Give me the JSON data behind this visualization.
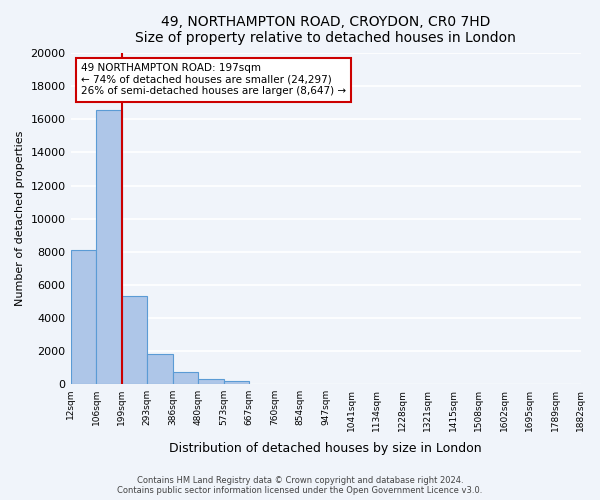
{
  "title": "49, NORTHAMPTON ROAD, CROYDON, CR0 7HD",
  "subtitle": "Size of property relative to detached houses in London",
  "xlabel": "Distribution of detached houses by size in London",
  "ylabel": "Number of detached properties",
  "bin_edges": [
    "12sqm",
    "106sqm",
    "199sqm",
    "293sqm",
    "386sqm",
    "480sqm",
    "573sqm",
    "667sqm",
    "760sqm",
    "854sqm",
    "947sqm",
    "1041sqm",
    "1134sqm",
    "1228sqm",
    "1321sqm",
    "1415sqm",
    "1508sqm",
    "1602sqm",
    "1695sqm",
    "1789sqm",
    "1882sqm"
  ],
  "bar_values": [
    8100,
    16600,
    5300,
    1800,
    700,
    300,
    150,
    0,
    0,
    0,
    0,
    0,
    0,
    0,
    0,
    0,
    0,
    0,
    0,
    0
  ],
  "bar_color": "#aec6e8",
  "bar_edge_color": "#5b9bd5",
  "property_line_color": "#cc0000",
  "ylim": [
    0,
    20000
  ],
  "yticks": [
    0,
    2000,
    4000,
    6000,
    8000,
    10000,
    12000,
    14000,
    16000,
    18000,
    20000
  ],
  "annotation_title": "49 NORTHAMPTON ROAD: 197sqm",
  "annotation_line1": "← 74% of detached houses are smaller (24,297)",
  "annotation_line2": "26% of semi-detached houses are larger (8,647) →",
  "annotation_box_color": "#ffffff",
  "annotation_box_edge_color": "#cc0000",
  "footer_line1": "Contains HM Land Registry data © Crown copyright and database right 2024.",
  "footer_line2": "Contains public sector information licensed under the Open Government Licence v3.0.",
  "background_color": "#f0f4fa",
  "grid_color": "#ffffff"
}
